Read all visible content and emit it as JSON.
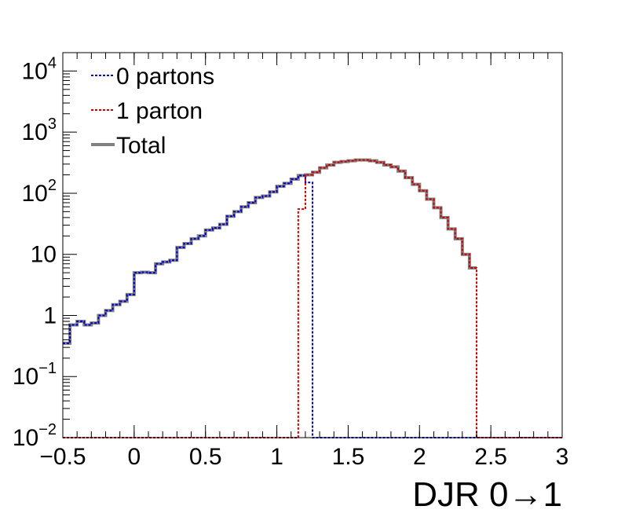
{
  "chart_data": {
    "type": "line",
    "title": "",
    "xlabel": "DJR 0→1",
    "ylabel": "",
    "xlim": [
      -0.5,
      3.0
    ],
    "ylim": [
      0.01,
      20000
    ],
    "log_y": true,
    "grid": false,
    "legend_position": "top-left",
    "x_ticks": [
      "−0.5",
      "0",
      "0.5",
      "1",
      "1.5",
      "2",
      "2.5",
      "3"
    ],
    "x_tick_values": [
      -0.5,
      0,
      0.5,
      1,
      1.5,
      2,
      2.5,
      3
    ],
    "y_ticks": [
      {
        "value": 0.01,
        "base": "10",
        "exp": "−2"
      },
      {
        "value": 0.1,
        "base": "10",
        "exp": "−1"
      },
      {
        "value": 1,
        "base": "1",
        "exp": ""
      },
      {
        "value": 10,
        "base": "10",
        "exp": ""
      },
      {
        "value": 100,
        "base": "10",
        "exp": "2"
      },
      {
        "value": 1000,
        "base": "10",
        "exp": "3"
      },
      {
        "value": 10000,
        "base": "10",
        "exp": "4"
      }
    ],
    "bin_width": 0.05,
    "x_bin_edges_start": -0.5,
    "series": [
      {
        "name": "Total",
        "color": "#808080",
        "style": "solid",
        "values": [
          0.35,
          0.7,
          0.8,
          0.7,
          0.75,
          1.0,
          1.2,
          1.5,
          1.7,
          2.2,
          5.0,
          5.1,
          5.0,
          7.0,
          7.5,
          8.0,
          13,
          15,
          18,
          20,
          25,
          27,
          31,
          42,
          50,
          60,
          70,
          85,
          90,
          105,
          130,
          145,
          170,
          195,
          200,
          220,
          260,
          290,
          320,
          330,
          340,
          350,
          350,
          340,
          320,
          290,
          270,
          230,
          180,
          140,
          110,
          80,
          58,
          40,
          26,
          18,
          10,
          6.0
        ]
      },
      {
        "name": "0 partons",
        "color": "#0000cc",
        "style": "dotted",
        "values": [
          0.35,
          0.7,
          0.8,
          0.7,
          0.75,
          1.0,
          1.2,
          1.5,
          1.7,
          2.2,
          5.0,
          5.1,
          5.0,
          7.0,
          7.5,
          8.0,
          13,
          15,
          18,
          20,
          25,
          27,
          31,
          42,
          50,
          60,
          70,
          85,
          90,
          105,
          130,
          145,
          170,
          195,
          150
        ]
      },
      {
        "name": "1 parton",
        "color": "#cc0000",
        "style": "dotted",
        "values": [
          0.01,
          0.01,
          0.01,
          0.01,
          0.01,
          0.01,
          0.01,
          0.01,
          0.01,
          0.01,
          0.01,
          0.01,
          0.01,
          0.01,
          0.01,
          0.01,
          0.01,
          0.01,
          0.01,
          0.01,
          0.01,
          0.01,
          0.01,
          0.01,
          0.01,
          0.01,
          0.01,
          0.01,
          0.01,
          0.01,
          0.01,
          0.01,
          0.01,
          55,
          200,
          220,
          260,
          290,
          320,
          330,
          340,
          350,
          350,
          340,
          320,
          290,
          270,
          230,
          180,
          140,
          110,
          80,
          58,
          40,
          26,
          18,
          10,
          6.0
        ]
      }
    ]
  }
}
